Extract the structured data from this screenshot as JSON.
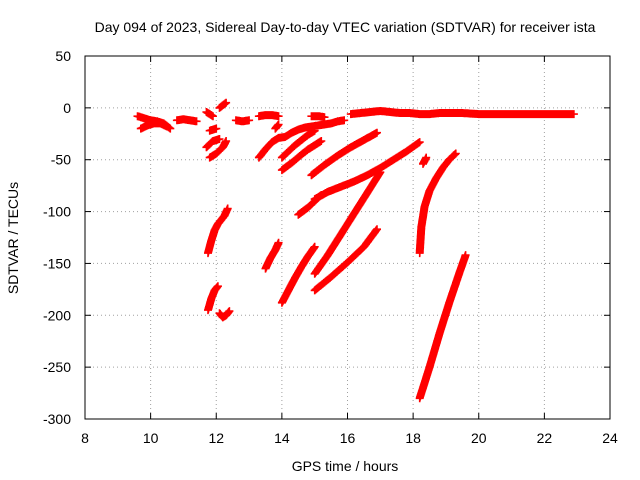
{
  "chart_data": {
    "type": "scatter",
    "title": "Day 094 of 2023, Sidereal Day-to-day VTEC variation (SDTVAR) for receiver ista",
    "xlabel": "GPS time / hours",
    "ylabel": "SDTVAR / TECUs",
    "xlim": [
      8,
      24
    ],
    "ylim": [
      -300,
      50
    ],
    "x_ticks": [
      8,
      10,
      12,
      14,
      16,
      18,
      20,
      22,
      24
    ],
    "y_ticks": [
      -300,
      -250,
      -200,
      -150,
      -100,
      -50,
      0,
      50
    ],
    "x_tick_labels": [
      "8",
      "10",
      "12",
      "14",
      "16",
      "18",
      "20",
      "22",
      "24"
    ],
    "y_tick_labels": [
      "-300",
      "-250",
      "-200",
      "-150",
      "-100",
      "-50",
      "0",
      "50"
    ],
    "grid": true,
    "marker": "plus",
    "color": "#ff0000",
    "series": [
      {
        "name": "s1",
        "x": [
          9.6,
          9.8,
          10.0,
          10.2,
          10.4,
          10.6
        ],
        "y": [
          -8,
          -10,
          -12,
          -13,
          -15,
          -20
        ]
      },
      {
        "name": "s2",
        "x": [
          9.7,
          9.9,
          10.1,
          10.3,
          10.5
        ],
        "y": [
          -20,
          -17,
          -15,
          -15,
          -18
        ]
      },
      {
        "name": "s3",
        "x": [
          10.8,
          11.0,
          11.2,
          11.4
        ],
        "y": [
          -12,
          -11,
          -12,
          -13
        ]
      },
      {
        "name": "s4",
        "x": [
          11.7,
          11.9
        ],
        "y": [
          -4,
          -8
        ]
      },
      {
        "name": "s5",
        "x": [
          12.1,
          12.3
        ],
        "y": [
          0,
          5
        ]
      },
      {
        "name": "s6",
        "x": [
          11.8,
          12.0
        ],
        "y": [
          -22,
          -20
        ]
      },
      {
        "name": "s7",
        "x": [
          11.7,
          11.9,
          12.1
        ],
        "y": [
          -38,
          -32,
          -30
        ]
      },
      {
        "name": "s8",
        "x": [
          11.8,
          12.0,
          12.2,
          12.3
        ],
        "y": [
          -48,
          -44,
          -38,
          -32
        ]
      },
      {
        "name": "s9",
        "x": [
          12.6,
          12.8,
          13.0
        ],
        "y": [
          -12,
          -13,
          -12
        ]
      },
      {
        "name": "s10",
        "x": [
          13.3,
          13.5,
          13.7,
          13.9
        ],
        "y": [
          -8,
          -7,
          -7,
          -8
        ]
      },
      {
        "name": "s11",
        "x": [
          13.8,
          13.9
        ],
        "y": [
          -20,
          -16
        ]
      },
      {
        "name": "s12",
        "x": [
          14.9,
          15.1,
          15.3
        ],
        "y": [
          -8,
          -8,
          -9
        ]
      },
      {
        "name": "s13",
        "x": [
          13.3,
          13.5,
          13.7,
          13.9,
          14.1,
          14.3,
          14.5,
          14.7,
          14.9,
          15.1,
          15.3,
          15.5,
          15.7,
          15.9
        ],
        "y": [
          -48,
          -40,
          -33,
          -29,
          -28,
          -24,
          -21,
          -19,
          -18,
          -17,
          -16,
          -15,
          -13,
          -12
        ]
      },
      {
        "name": "s14",
        "x": [
          14.0,
          14.2,
          14.4,
          14.6,
          14.8,
          15.0
        ],
        "y": [
          -48,
          -42,
          -36,
          -31,
          -26,
          -22
        ]
      },
      {
        "name": "s15",
        "x": [
          14.0,
          14.3,
          14.6,
          14.8,
          15.0,
          15.2
        ],
        "y": [
          -60,
          -53,
          -45,
          -40,
          -36,
          -32
        ]
      },
      {
        "name": "s16",
        "x": [
          14.9,
          15.3,
          15.7,
          16.1,
          16.5,
          16.9
        ],
        "y": [
          -65,
          -55,
          -46,
          -38,
          -31,
          -24
        ]
      },
      {
        "name": "s17",
        "x": [
          14.5,
          14.8,
          15.0,
          15.2
        ],
        "y": [
          -103,
          -96,
          -90,
          -84
        ]
      },
      {
        "name": "s18",
        "x": [
          15.0,
          15.4,
          15.8,
          16.2,
          16.6,
          17.0,
          17.4,
          17.8,
          18.2
        ],
        "y": [
          -88,
          -81,
          -76,
          -71,
          -65,
          -58,
          -50,
          -42,
          -33
        ]
      },
      {
        "name": "s19",
        "x": [
          11.75,
          11.85,
          11.95,
          12.05,
          12.15,
          12.25,
          12.35
        ],
        "y": [
          -140,
          -128,
          -118,
          -112,
          -108,
          -104,
          -97
        ]
      },
      {
        "name": "s20",
        "x": [
          11.75,
          11.85,
          11.95,
          12.05
        ],
        "y": [
          -195,
          -184,
          -176,
          -172
        ]
      },
      {
        "name": "s21",
        "x": [
          12.1,
          12.2,
          12.3,
          12.4
        ],
        "y": [
          -198,
          -202,
          -200,
          -196
        ]
      },
      {
        "name": "s22",
        "x": [
          13.5,
          13.65,
          13.8,
          13.9
        ],
        "y": [
          -155,
          -145,
          -137,
          -130
        ]
      },
      {
        "name": "s23",
        "x": [
          14.0,
          14.2,
          14.4,
          14.6,
          14.8,
          15.0
        ],
        "y": [
          -188,
          -176,
          -164,
          -153,
          -143,
          -134
        ]
      },
      {
        "name": "s24",
        "x": [
          15.0,
          15.4,
          15.8,
          16.2,
          16.6,
          17.0
        ],
        "y": [
          -160,
          -142,
          -122,
          -102,
          -82,
          -62
        ]
      },
      {
        "name": "s25",
        "x": [
          15.0,
          15.5,
          16.0,
          16.5,
          16.9
        ],
        "y": [
          -176,
          -163,
          -149,
          -134,
          -117
        ]
      },
      {
        "name": "s26",
        "x": [
          18.2,
          18.25,
          18.35,
          18.5,
          18.7,
          18.9,
          19.1,
          19.3
        ],
        "y": [
          -140,
          -115,
          -95,
          -80,
          -68,
          -58,
          -50,
          -44
        ]
      },
      {
        "name": "s27",
        "x": [
          18.3,
          18.4
        ],
        "y": [
          -54,
          -48
        ]
      },
      {
        "name": "s28",
        "x": [
          18.2,
          18.5,
          18.8,
          19.1,
          19.4,
          19.6
        ],
        "y": [
          -280,
          -250,
          -218,
          -188,
          -160,
          -142
        ]
      },
      {
        "name": "s29",
        "x": [
          16.1,
          16.4,
          16.7,
          17.0,
          17.3,
          17.6,
          17.9,
          18.2,
          18.5,
          18.8,
          19.1,
          19.5,
          20.0,
          20.5,
          21.0,
          21.5,
          22.0,
          22.5,
          22.9
        ],
        "y": [
          -6,
          -5,
          -4,
          -3,
          -4,
          -5,
          -5,
          -6,
          -6,
          -5,
          -5,
          -5,
          -6,
          -6,
          -6,
          -6,
          -6,
          -6,
          -6
        ]
      }
    ]
  }
}
